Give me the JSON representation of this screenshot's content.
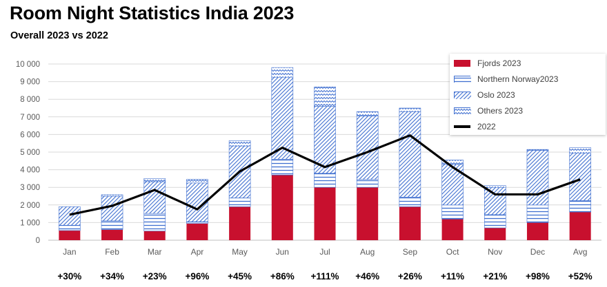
{
  "title": "Room Night Statistics India 2023",
  "subtitle": "Overall 2023 vs 2022",
  "colors": {
    "fjords": "#c8102e",
    "northern": "#3f6fd0",
    "oslo": "#3f6fd0",
    "others": "#3f6fd0",
    "line": "#000000",
    "grid": "#d9d9d9",
    "axis_text": "#595959"
  },
  "legend": {
    "placement": "top-right",
    "items": [
      "Fjords 2023",
      "Northern Norway2023",
      "Oslo 2023",
      "Others 2023",
      "2022"
    ]
  },
  "growth_labels": [
    "+30%",
    "+34%",
    "+23%",
    "+96%",
    "+45%",
    "+86%",
    "+111%",
    "+46%",
    "+26%",
    "+11%",
    "+21%",
    "+98%",
    "+52%"
  ],
  "chart_data": {
    "type": "bar",
    "stacked": true,
    "categories": [
      "Jan",
      "Feb",
      "Mar",
      "Apr",
      "May",
      "Jun",
      "Jul",
      "Aug",
      "Sep",
      "Oct",
      "Nov",
      "Dec",
      "Avg"
    ],
    "series": [
      {
        "name": "Fjords 2023",
        "type": "bar",
        "values": [
          550,
          600,
          520,
          950,
          1900,
          3700,
          3000,
          3000,
          1900,
          1200,
          700,
          1000,
          1600
        ]
      },
      {
        "name": "Northern Norway2023",
        "type": "bar",
        "values": [
          300,
          500,
          1000,
          100,
          500,
          900,
          800,
          450,
          550,
          800,
          750,
          1000,
          650
        ]
      },
      {
        "name": "Oslo 2023",
        "type": "bar",
        "values": [
          1050,
          1400,
          1800,
          2200,
          2950,
          4650,
          3800,
          3600,
          4850,
          2300,
          1550,
          3100,
          2700
        ]
      },
      {
        "name": "Others 2023",
        "type": "bar",
        "values": [
          0,
          80,
          180,
          200,
          300,
          550,
          1100,
          250,
          200,
          250,
          100,
          50,
          300
        ]
      },
      {
        "name": "2022",
        "type": "line",
        "values": [
          1450,
          1950,
          2850,
          1750,
          3900,
          5250,
          4150,
          5000,
          5950,
          4150,
          2600,
          2600,
          3450
        ]
      }
    ],
    "xlabel": "",
    "ylabel": "",
    "ylim": [
      0,
      10000
    ],
    "yticks": [
      "0",
      "1 000",
      "2 000",
      "3 000",
      "4 000",
      "5 000",
      "6 000",
      "7 000",
      "8 000",
      "9 000",
      "10 000"
    ],
    "grid": true
  }
}
